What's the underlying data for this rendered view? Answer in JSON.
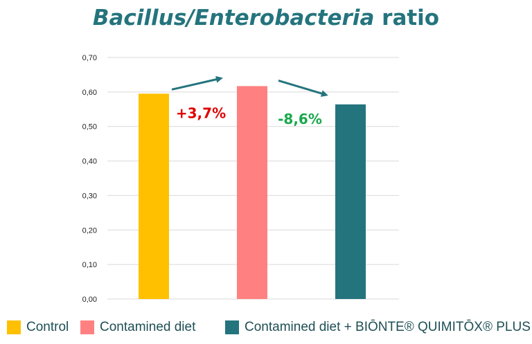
{
  "chart_data": {
    "type": "bar",
    "title_italic": "Bacillus/Enterobacteria",
    "title_rest": "ratio",
    "categories": [
      "Control",
      "Contamined diet",
      "Contamined diet + BIŌNTE® QUIMITŌX® PLUS"
    ],
    "values": [
      0.595,
      0.617,
      0.564
    ],
    "colors": [
      "#ffc000",
      "#ff8080",
      "#24747d"
    ],
    "yticks": [
      "0,00",
      "0,10",
      "0,20",
      "0,30",
      "0,40",
      "0,50",
      "0,60",
      "0,70"
    ],
    "ylim": [
      0,
      0.7
    ],
    "grid": true,
    "legend_position": "bottom",
    "annotations": [
      {
        "text": "+3,7%",
        "color": "#e00000"
      },
      {
        "text": "-8,6%",
        "color": "#1aa84c"
      }
    ],
    "arrow_color": "#24747d"
  }
}
